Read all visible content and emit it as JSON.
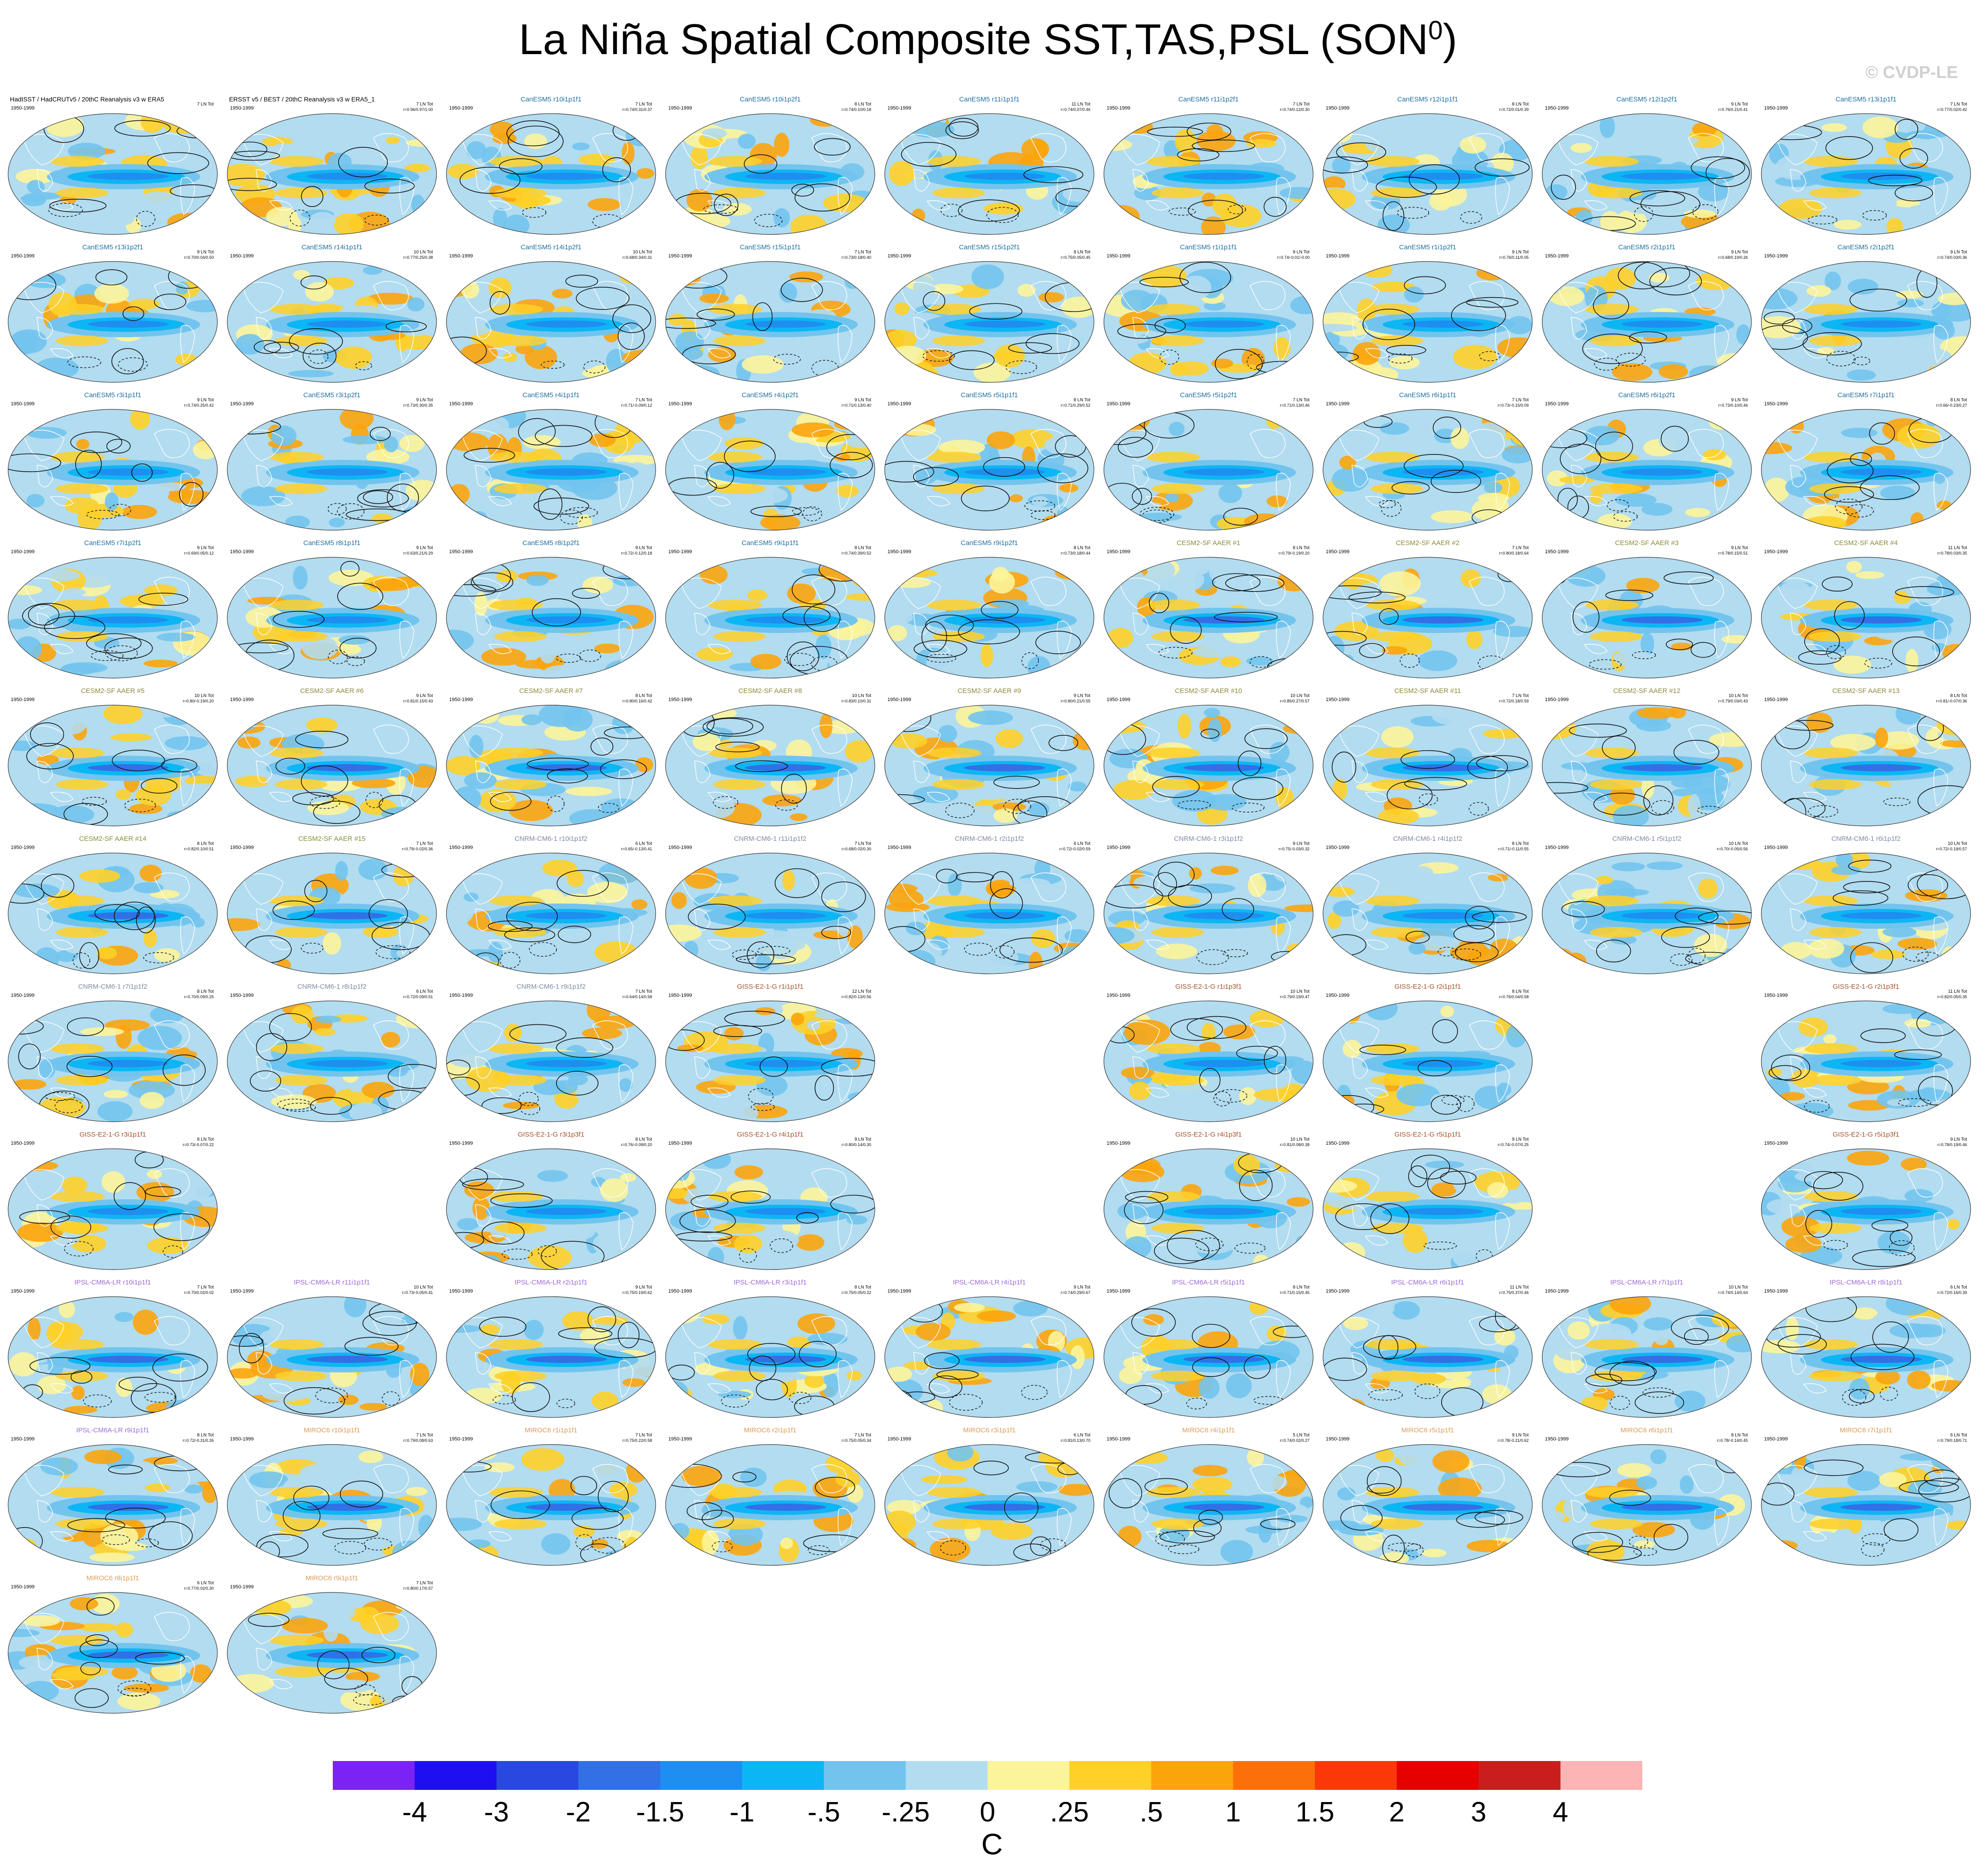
{
  "title": "La Niña Spatial Composite SST,TAS,PSL (SON",
  "title_sup": "0",
  "title_close": ")",
  "watermark": "© CVDP-LE",
  "colors": {
    "levels": [
      "#7b22f5",
      "#1e0ff0",
      "#2848e0",
      "#3270e6",
      "#1e8ef0",
      "#0cb6f4",
      "#72c4ee",
      "#b2dcf0",
      "#fcf49a",
      "#fed028",
      "#fca40c",
      "#fc700c",
      "#fc3808",
      "#e60000",
      "#c81e1e",
      "#fcb4b4"
    ]
  },
  "chart_data": {
    "type": "map-panel-grid",
    "projection": "Robinson",
    "colorbar_ticks": [
      "-4",
      "-3",
      "-2",
      "-1.5",
      "-1",
      "-.5",
      "-.25",
      "0",
      ".25",
      ".5",
      "1",
      "1.5",
      "2",
      "3",
      "4"
    ],
    "colorbar_unit": "C",
    "panels": [
      {
        "name": "HadISST / HadCRUTv5 / 20thC Reanalysis v3 w ERA5",
        "period": "1950-1999",
        "s1": "7 LN Tot",
        "s2": "",
        "color": "#000000",
        "kind": "obs"
      },
      {
        "name": "ERSST v5 / BEST / 20thC Reanalysis v3 w ERA5_1",
        "period": "1950-1999",
        "s1": "7 LN Tot",
        "s2": "r=0.96/0.97/1.00",
        "color": "#000000",
        "kind": "obs"
      },
      {
        "name": "CanESM5 r10i1p1f1",
        "period": "1950-1999",
        "s1": "7 LN Tot",
        "s2": "r=0.74/0.31/0.37",
        "color": "#1e6e9e",
        "kind": "can"
      },
      {
        "name": "CanESM5 r10i1p2f1",
        "period": "1950-1999",
        "s1": "8 LN Tot",
        "s2": "r=0.74/0.10/0.18",
        "color": "#1e6e9e",
        "kind": "can"
      },
      {
        "name": "CanESM5 r11i1p1f1",
        "period": "1950-1999",
        "s1": "11 LN Tot",
        "s2": "r=0.74/0.07/0.46",
        "color": "#1e6e9e",
        "kind": "can"
      },
      {
        "name": "CanESM5 r11i1p2f1",
        "period": "1950-1999",
        "s1": "7 LN Tot",
        "s2": "r=0.74/0.12/0.30",
        "color": "#1e6e9e",
        "kind": "can"
      },
      {
        "name": "CanESM5 r12i1p1f1",
        "period": "1950-1999",
        "s1": "8 LN Tot",
        "s2": "r=0.72/0.01/0.39",
        "color": "#1e6e9e",
        "kind": "can"
      },
      {
        "name": "CanESM5 r12i1p2f1",
        "period": "1950-1999",
        "s1": "9 LN Tot",
        "s2": "r=0.76/0.21/0.41",
        "color": "#1e6e9e",
        "kind": "can"
      },
      {
        "name": "CanESM5 r13i1p1f1",
        "period": "1950-1999",
        "s1": "7 LN Tot",
        "s2": "r=0.77/0.02/0.42",
        "color": "#1e6e9e",
        "kind": "can"
      },
      {
        "name": "CanESM5 r13i1p2f1",
        "period": "1950-1999",
        "s1": "9 LN Tot",
        "s2": "r=0.70/0.04/0.50",
        "color": "#1e6e9e",
        "kind": "can"
      },
      {
        "name": "CanESM5 r14i1p1f1",
        "period": "1950-1999",
        "s1": "10 LN Tot",
        "s2": "r=0.77/0.25/0.38",
        "color": "#1e6e9e",
        "kind": "can"
      },
      {
        "name": "CanESM5 r14i1p2f1",
        "period": "1950-1999",
        "s1": "10 LN Tot",
        "s2": "r=0.68/0.34/0.31",
        "color": "#1e6e9e",
        "kind": "can"
      },
      {
        "name": "CanESM5 r15i1p1f1",
        "period": "1950-1999",
        "s1": "7 LN Tot",
        "s2": "r=0.73/0.18/0.40",
        "color": "#1e6e9e",
        "kind": "can"
      },
      {
        "name": "CanESM5 r15i1p2f1",
        "period": "1950-1999",
        "s1": "8 LN Tot",
        "s2": "r=0.75/0.05/0.45",
        "color": "#1e6e9e",
        "kind": "can"
      },
      {
        "name": "CanESM5 r1i1p1f1",
        "period": "1950-1999",
        "s1": "9 LN Tot",
        "s2": "r=0.74/-0.01/-0.00",
        "color": "#1e6e9e",
        "kind": "can"
      },
      {
        "name": "CanESM5 r1i1p2f1",
        "period": "1950-1999",
        "s1": "9 LN Tot",
        "s2": "r=0.76/0.11/0.05",
        "color": "#1e6e9e",
        "kind": "can"
      },
      {
        "name": "CanESM5 r2i1p1f1",
        "period": "1950-1999",
        "s1": "9 LN Tot",
        "s2": "r=0.68/0.19/0.26",
        "color": "#1e6e9e",
        "kind": "can"
      },
      {
        "name": "CanESM5 r2i1p2f1",
        "period": "1950-1999",
        "s1": "9 LN Tot",
        "s2": "r=0.74/0.03/0.36",
        "color": "#1e6e9e",
        "kind": "can"
      },
      {
        "name": "CanESM5 r3i1p1f1",
        "period": "1950-1999",
        "s1": "9 LN Tot",
        "s2": "r=0.74/0.25/0.42",
        "color": "#1e6e9e",
        "kind": "can"
      },
      {
        "name": "CanESM5 r3i1p2f1",
        "period": "1950-1999",
        "s1": "9 LN Tot",
        "s2": "r=0.73/0.30/0.35",
        "color": "#1e6e9e",
        "kind": "can"
      },
      {
        "name": "CanESM5 r4i1p1f1",
        "period": "1950-1999",
        "s1": "7 LN Tot",
        "s2": "r=0.71/-0.09/0.12",
        "color": "#1e6e9e",
        "kind": "can"
      },
      {
        "name": "CanESM5 r4i1p2f1",
        "period": "1950-1999",
        "s1": "9 LN Tot",
        "s2": "r=0.71/0.13/0.40",
        "color": "#1e6e9e",
        "kind": "can"
      },
      {
        "name": "CanESM5 r5i1p1f1",
        "period": "1950-1999",
        "s1": "8 LN Tot",
        "s2": "r=0.71/0.29/0.52",
        "color": "#1e6e9e",
        "kind": "can"
      },
      {
        "name": "CanESM5 r5i1p2f1",
        "period": "1950-1999",
        "s1": "7 LN Tot",
        "s2": "r=0.71/0.13/0.46",
        "color": "#1e6e9e",
        "kind": "can"
      },
      {
        "name": "CanESM5 r6i1p1f1",
        "period": "1950-1999",
        "s1": "7 LN Tot",
        "s2": "r=0.73/-0.15/0.09",
        "color": "#1e6e9e",
        "kind": "can"
      },
      {
        "name": "CanESM5 r6i1p2f1",
        "period": "1950-1999",
        "s1": "9 LN Tot",
        "s2": "r=0.73/0.10/0.46",
        "color": "#1e6e9e",
        "kind": "can"
      },
      {
        "name": "CanESM5 r7i1p1f1",
        "period": "1950-1999",
        "s1": "8 LN Tot",
        "s2": "r=0.66/-0.23/0.27",
        "color": "#1e6e9e",
        "kind": "can"
      },
      {
        "name": "CanESM5 r7i1p2f1",
        "period": "1950-1999",
        "s1": "9 LN Tot",
        "s2": "r=0.69/0.05/0.12",
        "color": "#1e6e9e",
        "kind": "can"
      },
      {
        "name": "CanESM5 r8i1p1f1",
        "period": "1950-1999",
        "s1": "9 LN Tot",
        "s2": "r=0.63/0.21/0.29",
        "color": "#1e6e9e",
        "kind": "can"
      },
      {
        "name": "CanESM5 r8i1p2f1",
        "period": "1950-1999",
        "s1": "9 LN Tot",
        "s2": "r=0.72/-0.12/0.18",
        "color": "#1e6e9e",
        "kind": "can"
      },
      {
        "name": "CanESM5 r9i1p1f1",
        "period": "1950-1999",
        "s1": "8 LN Tot",
        "s2": "r=0.74/0.39/0.52",
        "color": "#1e6e9e",
        "kind": "can"
      },
      {
        "name": "CanESM5 r9i1p2f1",
        "period": "1950-1999",
        "s1": "8 LN Tot",
        "s2": "r=0.73/0.18/0.44",
        "color": "#1e6e9e",
        "kind": "can"
      },
      {
        "name": "CESM2-SF AAER #1",
        "period": "1950-1999",
        "s1": "8 LN Tot",
        "s2": "r=0.79/-0.19/0.20",
        "color": "#8a8a3a",
        "kind": "cesm"
      },
      {
        "name": "CESM2-SF AAER #2",
        "period": "1950-1999",
        "s1": "7 LN Tot",
        "s2": "r=0.80/0.18/0.64",
        "color": "#8a8a3a",
        "kind": "cesm"
      },
      {
        "name": "CESM2-SF AAER #3",
        "period": "1950-1999",
        "s1": "9 LN Tot",
        "s2": "r=0.78/0.15/0.51",
        "color": "#8a8a3a",
        "kind": "cesm"
      },
      {
        "name": "CESM2-SF AAER #4",
        "period": "1950-1999",
        "s1": "11 LN Tot",
        "s2": "r=0.78/0.03/0.35",
        "color": "#8a8a3a",
        "kind": "cesm"
      },
      {
        "name": "CESM2-SF AAER #5",
        "period": "1950-1999",
        "s1": "10 LN Tot",
        "s2": "r=0.80/-0.19/0.20",
        "color": "#8a8a3a",
        "kind": "cesm"
      },
      {
        "name": "CESM2-SF AAER #6",
        "period": "1950-1999",
        "s1": "9 LN Tot",
        "s2": "r=0.81/0.15/0.43",
        "color": "#8a8a3a",
        "kind": "cesm"
      },
      {
        "name": "CESM2-SF AAER #7",
        "period": "1950-1999",
        "s1": "8 LN Tot",
        "s2": "r=0.80/0.16/0.42",
        "color": "#8a8a3a",
        "kind": "cesm"
      },
      {
        "name": "CESM2-SF AAER #8",
        "period": "1950-1999",
        "s1": "10 LN Tot",
        "s2": "r=0.83/0.10/0.31",
        "color": "#8a8a3a",
        "kind": "cesm"
      },
      {
        "name": "CESM2-SF AAER #9",
        "period": "1950-1999",
        "s1": "9 LN Tot",
        "s2": "r=0.80/0.21/0.55",
        "color": "#8a8a3a",
        "kind": "cesm"
      },
      {
        "name": "CESM2-SF AAER #10",
        "period": "1950-1999",
        "s1": "10 LN Tot",
        "s2": "r=0.85/0.27/0.57",
        "color": "#8a8a3a",
        "kind": "cesm"
      },
      {
        "name": "CESM2-SF AAER #11",
        "period": "1950-1999",
        "s1": "7 LN Tot",
        "s2": "r=0.72/0.18/0.59",
        "color": "#8a8a3a",
        "kind": "cesm"
      },
      {
        "name": "CESM2-SF AAER #12",
        "period": "1950-1999",
        "s1": "10 LN Tot",
        "s2": "r=0.79/0.03/0.43",
        "color": "#8a8a3a",
        "kind": "cesm"
      },
      {
        "name": "CESM2-SF AAER #13",
        "period": "1950-1999",
        "s1": "8 LN Tot",
        "s2": "r=0.81/-0.07/0.36",
        "color": "#8a8a3a",
        "kind": "cesm"
      },
      {
        "name": "CESM2-SF AAER #14",
        "period": "1950-1999",
        "s1": "8 LN Tot",
        "s2": "r=0.82/0.10/0.51",
        "color": "#8a8a3a",
        "kind": "cesm"
      },
      {
        "name": "CESM2-SF AAER #15",
        "period": "1950-1999",
        "s1": "7 LN Tot",
        "s2": "r=0.79/-0.02/0.36",
        "color": "#8a8a3a",
        "kind": "cesm"
      },
      {
        "name": "CNRM-CM6-1 r10i1p1f2",
        "period": "1950-1999",
        "s1": "6 LN Tot",
        "s2": "r=0.65/-0.13/0.41",
        "color": "#7a8aa0",
        "kind": "cnrm"
      },
      {
        "name": "CNRM-CM6-1 r11i1p1f2",
        "period": "1950-1999",
        "s1": "7 LN Tot",
        "s2": "r=0.68/0.02/0.30",
        "color": "#7a8aa0",
        "kind": "cnrm"
      },
      {
        "name": "CNRM-CM6-1 r2i1p1f2",
        "period": "1950-1999",
        "s1": "6 LN Tot",
        "s2": "r=0.72/-0.02/0.59",
        "color": "#7a8aa0",
        "kind": "cnrm"
      },
      {
        "name": "CNRM-CM6-1 r3i1p1f2",
        "period": "1950-1999",
        "s1": "9 LN Tot",
        "s2": "r=0.75/-0.03/0.32",
        "color": "#7a8aa0",
        "kind": "cnrm"
      },
      {
        "name": "CNRM-CM6-1 r4i1p1f2",
        "period": "1950-1999",
        "s1": "8 LN Tot",
        "s2": "r=0.71/-0.11/0.55",
        "color": "#7a8aa0",
        "kind": "cnrm"
      },
      {
        "name": "CNRM-CM6-1 r5i1p1f2",
        "period": "1950-1999",
        "s1": "10 LN Tot",
        "s2": "r=0.70/-0.05/0.56",
        "color": "#7a8aa0",
        "kind": "cnrm"
      },
      {
        "name": "CNRM-CM6-1 r6i1p1f2",
        "period": "1950-1999",
        "s1": "10 LN Tot",
        "s2": "r=0.72/-0.19/0.57",
        "color": "#7a8aa0",
        "kind": "cnrm"
      },
      {
        "name": "CNRM-CM6-1 r7i1p1f2",
        "period": "1950-1999",
        "s1": "8 LN Tot",
        "s2": "r=0.70/0.09/0.25",
        "color": "#7a8aa0",
        "kind": "cnrm"
      },
      {
        "name": "CNRM-CM6-1 r8i1p1f2",
        "period": "1950-1999",
        "s1": "6 LN Tot",
        "s2": "r=0.72/0.09/0.51",
        "color": "#7a8aa0",
        "kind": "cnrm"
      },
      {
        "name": "CNRM-CM6-1 r9i1p1f2",
        "period": "1950-1999",
        "s1": "7 LN Tot",
        "s2": "r=0.64/0.14/0.58",
        "color": "#7a8aa0",
        "kind": "cnrm"
      },
      {
        "name": "GISS-E2-1-G r1i1p1f1",
        "period": "1950-1999",
        "s1": "12 LN Tot",
        "s2": "r=0.82/0.13/0.56",
        "color": "#a0522d",
        "kind": "giss"
      },
      null,
      {
        "name": "GISS-E2-1-G r1i1p3f1",
        "period": "1950-1999",
        "s1": "10 LN Tot",
        "s2": "r=0.79/0.19/0.47",
        "color": "#a0522d",
        "kind": "giss"
      },
      {
        "name": "GISS-E2-1-G r2i1p1f1",
        "period": "1950-1999",
        "s1": "8 LN Tot",
        "s2": "r=0.76/0.04/0.58",
        "color": "#a0522d",
        "kind": "giss"
      },
      null,
      {
        "name": "GISS-E2-1-G r2i1p3f1",
        "period": "1950-1999",
        "s1": "11 LN Tot",
        "s2": "r=0.82/0.05/0.35",
        "color": "#a0522d",
        "kind": "giss"
      },
      {
        "name": "GISS-E2-1-G r3i1p1f1",
        "period": "1950-1999",
        "s1": "8 LN Tot",
        "s2": "r=0.73/-0.07/0.22",
        "color": "#a0522d",
        "kind": "giss"
      },
      null,
      {
        "name": "GISS-E2-1-G r3i1p3f1",
        "period": "1950-1999",
        "s1": "8 LN Tot",
        "s2": "r=0.76/-0.09/0.20",
        "color": "#a0522d",
        "kind": "giss"
      },
      {
        "name": "GISS-E2-1-G r4i1p1f1",
        "period": "1950-1999",
        "s1": "9 LN Tot",
        "s2": "r=0.80/0.14/0.30",
        "color": "#a0522d",
        "kind": "giss"
      },
      null,
      {
        "name": "GISS-E2-1-G r4i1p3f1",
        "period": "1950-1999",
        "s1": "10 LN Tot",
        "s2": "r=0.81/0.08/0.38",
        "color": "#a0522d",
        "kind": "giss"
      },
      {
        "name": "GISS-E2-1-G r5i1p1f1",
        "period": "1950-1999",
        "s1": "9 LN Tot",
        "s2": "r=0.74/-0.07/0.25",
        "color": "#a0522d",
        "kind": "giss"
      },
      null,
      {
        "name": "GISS-E2-1-G r5i1p3f1",
        "period": "1950-1999",
        "s1": "9 LN Tot",
        "s2": "r=0.78/0.19/0.46",
        "color": "#a0522d",
        "kind": "giss"
      },
      {
        "name": "IPSL-CM6A-LR r10i1p1f1",
        "period": "1950-1999",
        "s1": "7 LN Tot",
        "s2": "r=0.70/0.02/0.02",
        "color": "#9a6ad8",
        "kind": "ipsl"
      },
      {
        "name": "IPSL-CM6A-LR r11i1p1f1",
        "period": "1950-1999",
        "s1": "10 LN Tot",
        "s2": "r=0.73/-0.05/0.41",
        "color": "#9a6ad8",
        "kind": "ipsl"
      },
      {
        "name": "IPSL-CM6A-LR r2i1p1f1",
        "period": "1950-1999",
        "s1": "9 LN Tot",
        "s2": "r=0.75/0.19/0.62",
        "color": "#9a6ad8",
        "kind": "ipsl"
      },
      {
        "name": "IPSL-CM6A-LR r3i1p1f1",
        "period": "1950-1999",
        "s1": "8 LN Tot",
        "s2": "r=0.75/0.05/0.22",
        "color": "#9a6ad8",
        "kind": "ipsl"
      },
      {
        "name": "IPSL-CM6A-LR r4i1p1f1",
        "period": "1950-1999",
        "s1": "9 LN Tot",
        "s2": "r=0.74/0.29/0.67",
        "color": "#9a6ad8",
        "kind": "ipsl"
      },
      {
        "name": "IPSL-CM6A-LR r5i1p1f1",
        "period": "1950-1999",
        "s1": "8 LN Tot",
        "s2": "r=0.71/0.15/0.45",
        "color": "#9a6ad8",
        "kind": "ipsl"
      },
      {
        "name": "IPSL-CM6A-LR r6i1p1f1",
        "period": "1950-1999",
        "s1": "11 LN Tot",
        "s2": "r=0.75/0.37/0.46",
        "color": "#9a6ad8",
        "kind": "ipsl"
      },
      {
        "name": "IPSL-CM6A-LR r7i1p1f1",
        "period": "1950-1999",
        "s1": "10 LN Tot",
        "s2": "r=0.74/0.14/0.64",
        "color": "#9a6ad8",
        "kind": "ipsl"
      },
      {
        "name": "IPSL-CM6A-LR r8i1p1f1",
        "period": "1950-1999",
        "s1": "6 LN Tot",
        "s2": "r=0.72/0.16/0.39",
        "color": "#9a6ad8",
        "kind": "ipsl"
      },
      {
        "name": "IPSL-CM6A-LR r9i1p1f1",
        "period": "1950-1999",
        "s1": "8 LN Tot",
        "s2": "r=0.72/-0.31/0.26",
        "color": "#9a6ad8",
        "kind": "ipsl"
      },
      {
        "name": "MIROC6 r10i1p1f1",
        "period": "1950-1999",
        "s1": "7 LN Tot",
        "s2": "r=0.79/0.08/0.63",
        "color": "#dc9a56",
        "kind": "miroc"
      },
      {
        "name": "MIROC6 r1i1p1f1",
        "period": "1950-1999",
        "s1": "7 LN Tot",
        "s2": "r=0.75/0.22/0.58",
        "color": "#dc9a56",
        "kind": "miroc"
      },
      {
        "name": "MIROC6 r2i1p1f1",
        "period": "1950-1999",
        "s1": "7 LN Tot",
        "s2": "r=0.75/0.05/0.34",
        "color": "#dc9a56",
        "kind": "miroc"
      },
      {
        "name": "MIROC6 r3i1p1f1",
        "period": "1950-1999",
        "s1": "6 LN Tot",
        "s2": "r=0.81/0.13/0.70",
        "color": "#dc9a56",
        "kind": "miroc"
      },
      {
        "name": "MIROC6 r4i1p1f1",
        "period": "1950-1999",
        "s1": "5 LN Tot",
        "s2": "r=0.74/0.02/0.27",
        "color": "#dc9a56",
        "kind": "miroc"
      },
      {
        "name": "MIROC6 r5i1p1f1",
        "period": "1950-1999",
        "s1": "9 LN Tot",
        "s2": "r=0.78/-0.21/0.62",
        "color": "#dc9a56",
        "kind": "miroc"
      },
      {
        "name": "MIROC6 r6i1p1f1",
        "period": "1950-1999",
        "s1": "8 LN Tot",
        "s2": "r=0.78/-0.14/0.45",
        "color": "#dc9a56",
        "kind": "miroc"
      },
      {
        "name": "MIROC6 r7i1p1f1",
        "period": "1950-1999",
        "s1": "6 LN Tot",
        "s2": "r=0.79/0.18/0.71",
        "color": "#dc9a56",
        "kind": "miroc"
      },
      {
        "name": "MIROC6 r8i1p1f1",
        "period": "1950-1999",
        "s1": "6 LN Tot",
        "s2": "r=0.77/0.02/0.30",
        "color": "#dc9a56",
        "kind": "miroc"
      },
      {
        "name": "MIROC6 r9i1p1f1",
        "period": "1950-1999",
        "s1": "7 LN Tot",
        "s2": "r=0.80/0.17/0.57",
        "color": "#dc9a56",
        "kind": "miroc"
      }
    ]
  }
}
